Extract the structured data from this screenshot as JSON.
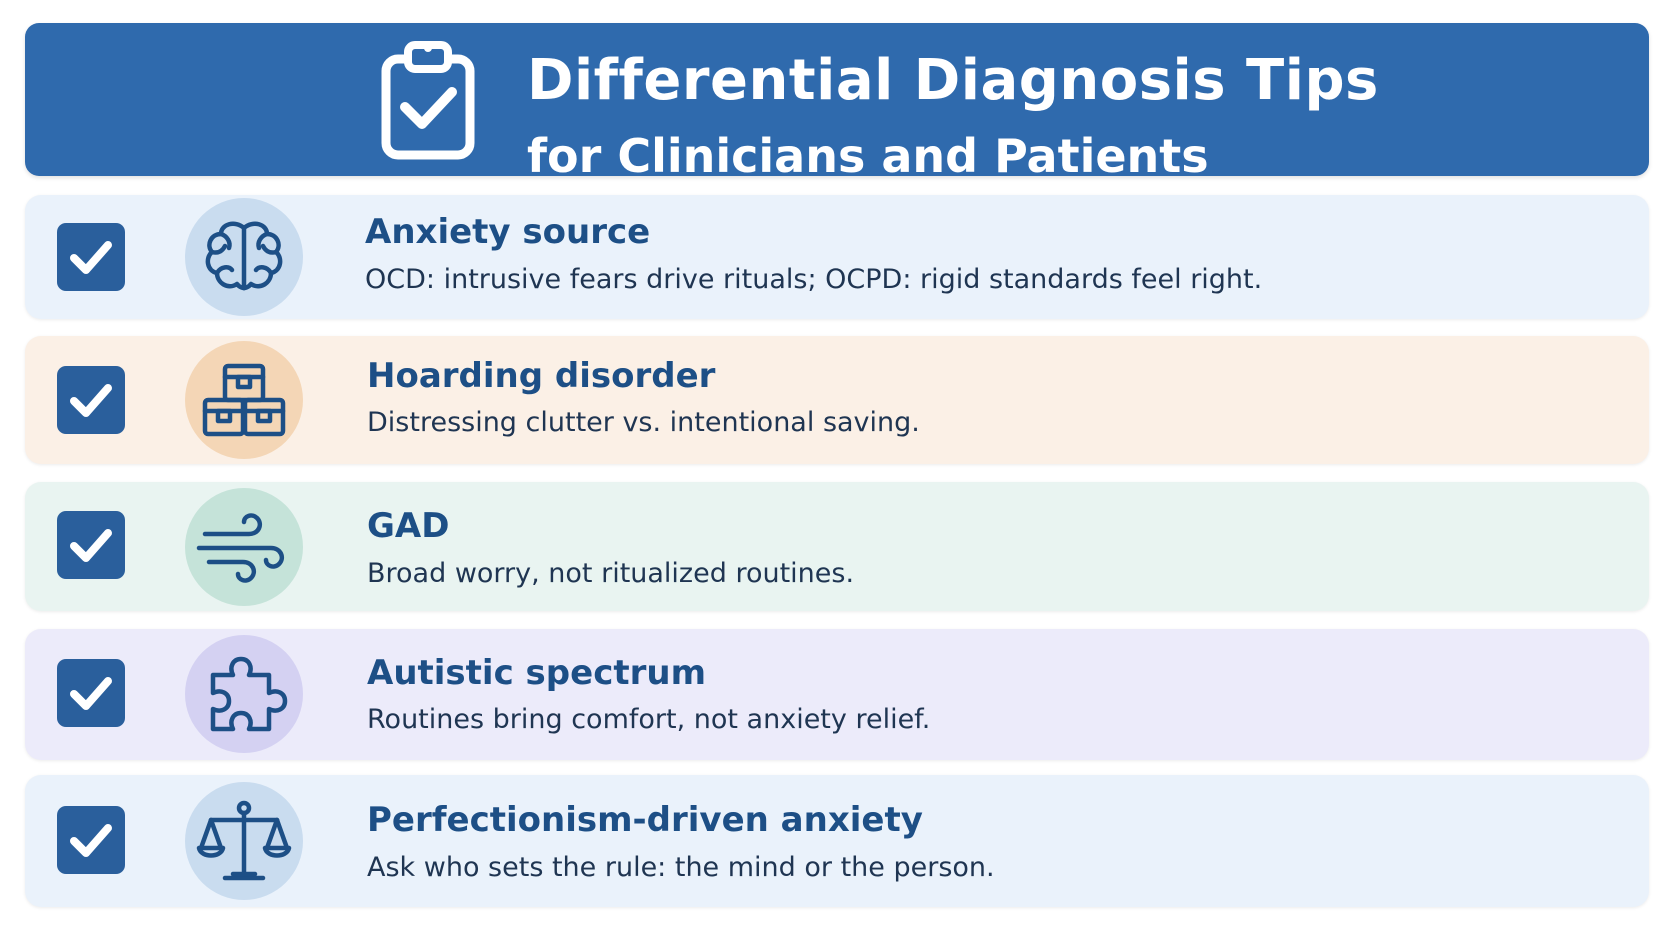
{
  "header": {
    "title": "Differential Diagnosis Tips",
    "subtitle": "for Clinicians and Patients",
    "icon": "clipboard-check-icon",
    "color": "#2f6aad"
  },
  "tips": [
    {
      "title": "Anxiety source",
      "description": "OCD: intrusive fears drive rituals; OCPD: rigid standards feel right.",
      "icon": "brain-icon",
      "card_color": "#eaf2fb",
      "circle_color": "#c9dcef",
      "checked": true
    },
    {
      "title": "Hoarding disorder",
      "description": "Distressing clutter vs. intentional saving.",
      "icon": "boxes-icon",
      "card_color": "#fbf0e6",
      "circle_color": "#f4d6b6",
      "checked": true
    },
    {
      "title": "GAD",
      "description": "Broad worry, not ritualized routines.",
      "icon": "wind-icon",
      "card_color": "#e9f4f1",
      "circle_color": "#c5e3d9",
      "checked": true
    },
    {
      "title": "Autistic spectrum",
      "description": "Routines bring comfort, not anxiety relief.",
      "icon": "puzzle-piece-icon",
      "card_color": "#ecebfa",
      "circle_color": "#d4d1f2",
      "checked": true
    },
    {
      "title": "Perfectionism-driven anxiety",
      "description": "Ask who sets the rule: the mind or the person.",
      "icon": "balance-scale-icon",
      "card_color": "#eaf2fb",
      "circle_color": "#c9dcef",
      "checked": true
    }
  ]
}
